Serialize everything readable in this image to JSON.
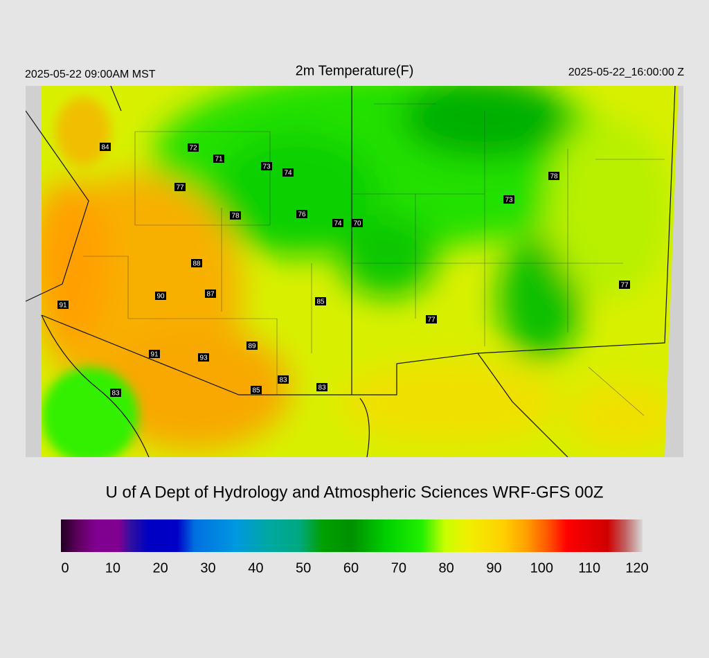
{
  "header": {
    "valid_local": "2025-05-22 09:00AM MST",
    "title": "2m Temperature(F)",
    "valid_utc": "2025-05-22_16:00:00 Z"
  },
  "stations": [
    84,
    72,
    71,
    73,
    74,
    77,
    78,
    76,
    74,
    70,
    73,
    78,
    88,
    90,
    87,
    85,
    91,
    77,
    77,
    89,
    91,
    93,
    83,
    83,
    85,
    83
  ],
  "credit": "U of A Dept of Hydrology and Atmospheric Sciences WRF-GFS 00Z",
  "colorbar": {
    "range": [
      0,
      120
    ],
    "ticks": [
      0,
      10,
      20,
      30,
      40,
      50,
      60,
      70,
      80,
      90,
      100,
      110,
      120
    ]
  }
}
